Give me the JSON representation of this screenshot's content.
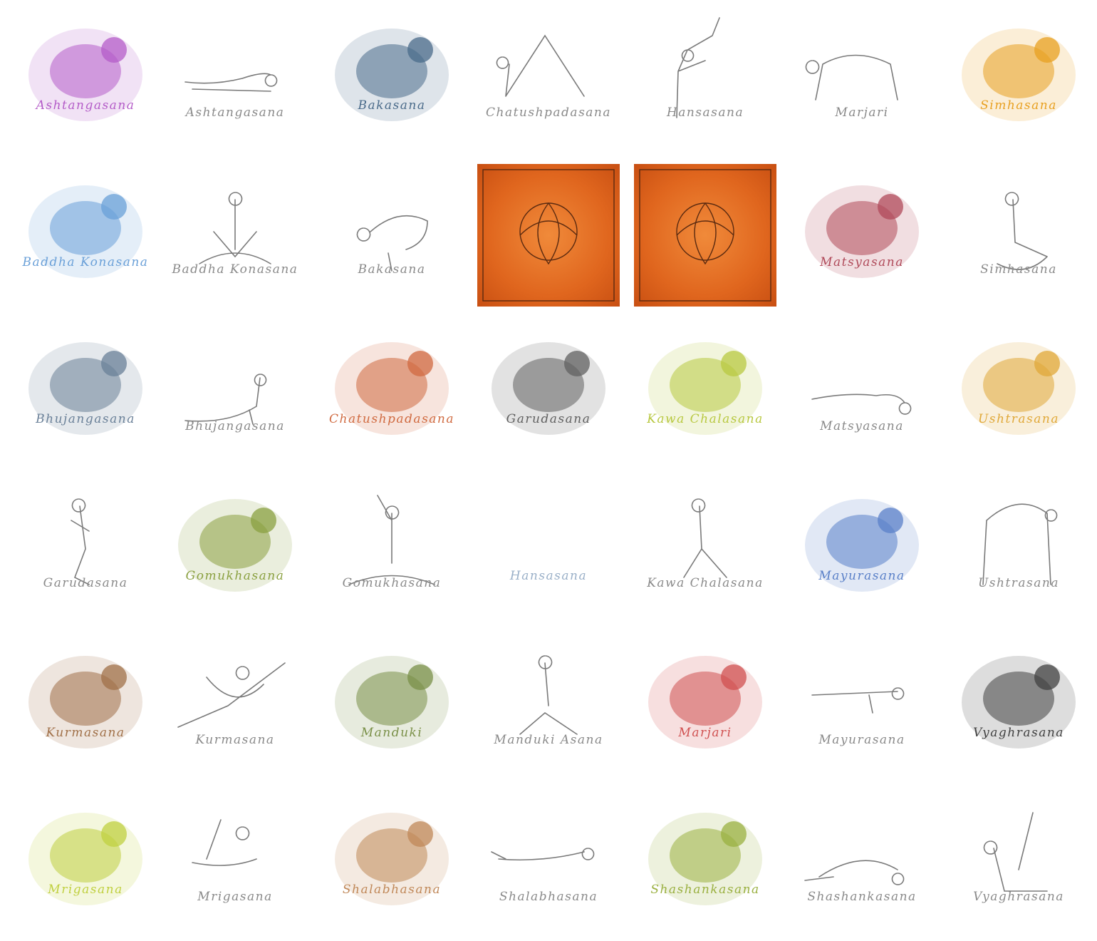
{
  "cards": [
    {
      "label": "Ashtangasana",
      "kind": "animal",
      "animal": "caterpillar",
      "color": "#b45cc8"
    },
    {
      "label": "Ashtangasana",
      "kind": "pose",
      "pose": "prone"
    },
    {
      "label": "Bakasana",
      "kind": "animal",
      "animal": "crane",
      "color": "#4a6b8a"
    },
    {
      "label": "Chatushpadasana",
      "kind": "pose",
      "pose": "dog"
    },
    {
      "label": "Hansasana",
      "kind": "pose",
      "pose": "dancer"
    },
    {
      "label": "Marjari",
      "kind": "pose",
      "pose": "cat"
    },
    {
      "label": "Simhasana",
      "kind": "animal",
      "animal": "lion",
      "color": "#e8a020"
    },
    {
      "label": "Baddha Konasana",
      "kind": "animal",
      "animal": "butterfly",
      "color": "#6aa0d8"
    },
    {
      "label": "Baddha Konasana",
      "kind": "pose",
      "pose": "seated"
    },
    {
      "label": "Bakasana",
      "kind": "pose",
      "pose": "crow"
    },
    {
      "label": "",
      "kind": "ornament",
      "ornament": "ganesha-icon"
    },
    {
      "label": "",
      "kind": "ornament",
      "ornament": "lotus-icon"
    },
    {
      "label": "Matsyasana",
      "kind": "animal",
      "animal": "fish",
      "color": "#b04a5a"
    },
    {
      "label": "Simhasana",
      "kind": "pose",
      "pose": "kneel"
    },
    {
      "label": "Bhujangasana",
      "kind": "animal",
      "animal": "cobra",
      "color": "#6a8098"
    },
    {
      "label": "Bhujangasana",
      "kind": "pose",
      "pose": "cobra"
    },
    {
      "label": "Chatushpadasana",
      "kind": "animal",
      "animal": "bear",
      "color": "#d06a40"
    },
    {
      "label": "Garudasana",
      "kind": "animal",
      "animal": "eagle",
      "color": "#606060"
    },
    {
      "label": "Kawa Chalasana",
      "kind": "animal",
      "animal": "crow",
      "color": "#b8c840"
    },
    {
      "label": "Matsyasana",
      "kind": "pose",
      "pose": "fishpose"
    },
    {
      "label": "Ushtrasana",
      "kind": "animal",
      "animal": "camel",
      "color": "#e0a838"
    },
    {
      "label": "Garudasana",
      "kind": "pose",
      "pose": "eagle"
    },
    {
      "label": "Gomukhasana",
      "kind": "animal",
      "animal": "calf",
      "color": "#8aa040"
    },
    {
      "label": "Gomukhasana",
      "kind": "pose",
      "pose": "seated-arms"
    },
    {
      "label": "Hansasana",
      "kind": "animal",
      "animal": "swan",
      "color": "#ffffff"
    },
    {
      "label": "Kawa Chalasana",
      "kind": "pose",
      "pose": "squat-walk"
    },
    {
      "label": "Mayurasana",
      "kind": "animal",
      "animal": "peacock",
      "color": "#5a80c8"
    },
    {
      "label": "Ushtrasana",
      "kind": "pose",
      "pose": "camel"
    },
    {
      "label": "Kurmasana",
      "kind": "animal",
      "animal": "turtle",
      "color": "#a07048"
    },
    {
      "label": "Kurmasana",
      "kind": "pose",
      "pose": "turtle"
    },
    {
      "label": "Manduki",
      "kind": "animal",
      "animal": "frog",
      "color": "#7a9048"
    },
    {
      "label": "Manduki Asana",
      "kind": "pose",
      "pose": "squat"
    },
    {
      "label": "Marjari",
      "kind": "animal",
      "animal": "cat",
      "color": "#d05050"
    },
    {
      "label": "Mayurasana",
      "kind": "pose",
      "pose": "peacock"
    },
    {
      "label": "Vyaghrasana",
      "kind": "animal",
      "animal": "tiger",
      "color": "#404040"
    },
    {
      "label": "Mrigasana",
      "kind": "animal",
      "animal": "deer",
      "color": "#c0d040"
    },
    {
      "label": "Mrigasana",
      "kind": "pose",
      "pose": "deer"
    },
    {
      "label": "Shalabhasana",
      "kind": "animal",
      "animal": "mantis",
      "color": "#c08858"
    },
    {
      "label": "Shalabhasana",
      "kind": "pose",
      "pose": "locust"
    },
    {
      "label": "Shashankasana",
      "kind": "animal",
      "animal": "hare",
      "color": "#9ab040"
    },
    {
      "label": "Shashankasana",
      "kind": "pose",
      "pose": "child"
    },
    {
      "label": "Vyaghrasana",
      "kind": "pose",
      "pose": "tiger"
    }
  ]
}
